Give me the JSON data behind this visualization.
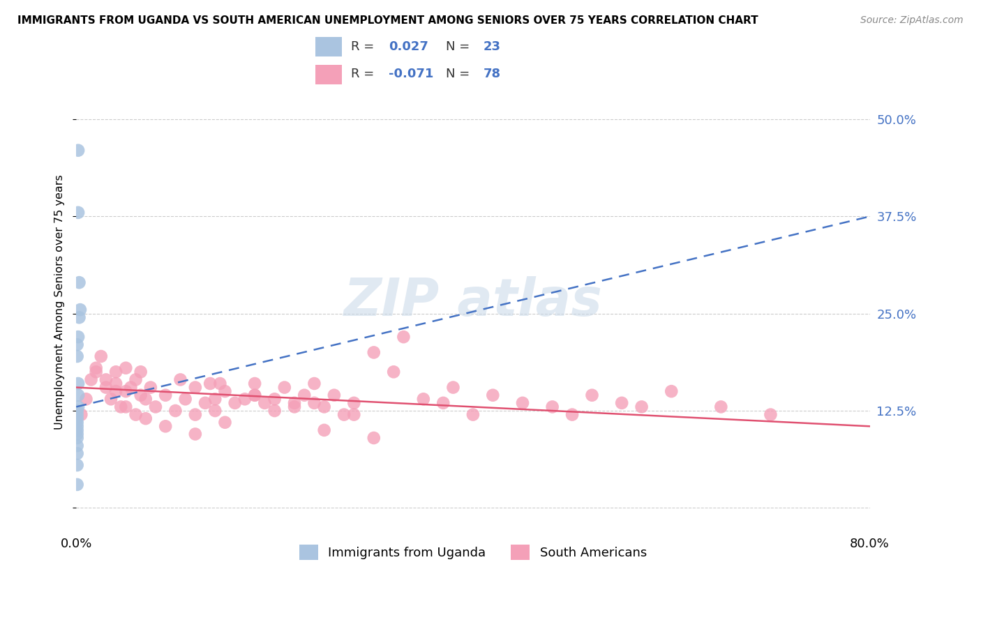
{
  "title": "IMMIGRANTS FROM UGANDA VS SOUTH AMERICAN UNEMPLOYMENT AMONG SENIORS OVER 75 YEARS CORRELATION CHART",
  "source": "Source: ZipAtlas.com",
  "ylabel": "Unemployment Among Seniors over 75 years",
  "xlim": [
    0.0,
    0.8
  ],
  "ylim": [
    -0.03,
    0.56
  ],
  "x_ticks": [
    0.0,
    0.1,
    0.2,
    0.3,
    0.4,
    0.5,
    0.6,
    0.7,
    0.8
  ],
  "y_ticks": [
    0.0,
    0.125,
    0.25,
    0.375,
    0.5
  ],
  "y_tick_labels": [
    "",
    "12.5%",
    "25.0%",
    "37.5%",
    "50.0%"
  ],
  "legend_R1": "0.027",
  "legend_N1": "23",
  "legend_R2": "-0.071",
  "legend_N2": "78",
  "color_uganda": "#aac4e0",
  "color_south_american": "#f4a0b8",
  "trendline_color_uganda": "#4472c4",
  "trendline_color_south": "#e05070",
  "grid_color": "#cccccc",
  "uganda_x": [
    0.002,
    0.002,
    0.003,
    0.004,
    0.003,
    0.002,
    0.001,
    0.001,
    0.002,
    0.002,
    0.002,
    0.001,
    0.001,
    0.001,
    0.001,
    0.001,
    0.001,
    0.001,
    0.001,
    0.001,
    0.001,
    0.001,
    0.001
  ],
  "uganda_y": [
    0.46,
    0.38,
    0.29,
    0.255,
    0.245,
    0.22,
    0.21,
    0.195,
    0.16,
    0.145,
    0.13,
    0.125,
    0.12,
    0.115,
    0.11,
    0.105,
    0.1,
    0.095,
    0.09,
    0.08,
    0.07,
    0.055,
    0.03
  ],
  "south_x": [
    0.005,
    0.01,
    0.015,
    0.02,
    0.02,
    0.025,
    0.03,
    0.03,
    0.035,
    0.04,
    0.04,
    0.04,
    0.045,
    0.05,
    0.05,
    0.055,
    0.06,
    0.06,
    0.065,
    0.065,
    0.07,
    0.075,
    0.08,
    0.09,
    0.1,
    0.105,
    0.11,
    0.12,
    0.12,
    0.13,
    0.135,
    0.14,
    0.14,
    0.145,
    0.15,
    0.16,
    0.17,
    0.18,
    0.18,
    0.19,
    0.2,
    0.2,
    0.21,
    0.22,
    0.23,
    0.24,
    0.24,
    0.25,
    0.26,
    0.27,
    0.28,
    0.3,
    0.32,
    0.33,
    0.35,
    0.37,
    0.38,
    0.4,
    0.42,
    0.45,
    0.48,
    0.5,
    0.52,
    0.55,
    0.57,
    0.3,
    0.28,
    0.25,
    0.22,
    0.18,
    0.15,
    0.12,
    0.09,
    0.07,
    0.05,
    0.6,
    0.65,
    0.7
  ],
  "south_y": [
    0.12,
    0.14,
    0.165,
    0.175,
    0.18,
    0.195,
    0.155,
    0.165,
    0.14,
    0.16,
    0.15,
    0.175,
    0.13,
    0.15,
    0.18,
    0.155,
    0.165,
    0.12,
    0.145,
    0.175,
    0.14,
    0.155,
    0.13,
    0.145,
    0.125,
    0.165,
    0.14,
    0.155,
    0.12,
    0.135,
    0.16,
    0.14,
    0.125,
    0.16,
    0.15,
    0.135,
    0.14,
    0.145,
    0.16,
    0.135,
    0.14,
    0.125,
    0.155,
    0.13,
    0.145,
    0.135,
    0.16,
    0.13,
    0.145,
    0.12,
    0.135,
    0.2,
    0.175,
    0.22,
    0.14,
    0.135,
    0.155,
    0.12,
    0.145,
    0.135,
    0.13,
    0.12,
    0.145,
    0.135,
    0.13,
    0.09,
    0.12,
    0.1,
    0.135,
    0.145,
    0.11,
    0.095,
    0.105,
    0.115,
    0.13,
    0.15,
    0.13,
    0.12
  ],
  "uganda_trendline_x": [
    0.0,
    0.8
  ],
  "uganda_trendline_y": [
    0.13,
    0.375
  ],
  "south_trendline_x": [
    0.0,
    0.8
  ],
  "south_trendline_y": [
    0.155,
    0.105
  ]
}
